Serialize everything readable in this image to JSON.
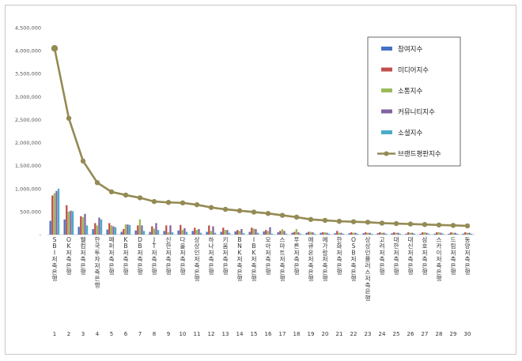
{
  "chart_data": {
    "type": "bar",
    "categories": [
      "SBI저축은행",
      "OK저축은행",
      "웰컴저축은행",
      "한국투자저축은행",
      "페퍼저축은행",
      "KB저축은행",
      "DB저축은행",
      "JT저축은행",
      "신한저축은행",
      "다올저축은행",
      "상상인저축은행",
      "하나저축은행",
      "키움저축은행",
      "BNK저축은행",
      "IBK저축은행",
      "모아저축은행",
      "스마트저축은행",
      "푸른저축은행",
      "애큐온저축은행",
      "예가람저축은행",
      "한화저축은행",
      "OSB저축은행",
      "상상인플러스저축은행",
      "고려저축은행",
      "대한저축은행",
      "대신저축은행",
      "삼호저축은행",
      "스카이저축은행",
      "드림저축은행",
      "동양저축은행"
    ],
    "ranks": [
      "1",
      "2",
      "3",
      "4",
      "5",
      "6",
      "7",
      "8",
      "9",
      "10",
      "11",
      "12",
      "13",
      "14",
      "15",
      "16",
      "17",
      "18",
      "19",
      "20",
      "21",
      "22",
      "23",
      "24",
      "25",
      "26",
      "27",
      "28",
      "29",
      "30"
    ],
    "series": [
      {
        "name": "참여지수",
        "color": "#4472c4",
        "kind": "bar",
        "values": [
          300000,
          330000,
          170000,
          120000,
          110000,
          60000,
          90000,
          60000,
          80000,
          90000,
          80000,
          60000,
          60000,
          70000,
          60000,
          70000,
          50000,
          40000,
          40000,
          40000,
          30000,
          30000,
          30000,
          30000,
          30000,
          20000,
          20000,
          20000,
          20000,
          20000
        ]
      },
      {
        "name": "미디어지수",
        "color": "#c0504d",
        "kind": "bar",
        "values": [
          850000,
          640000,
          400000,
          250000,
          250000,
          120000,
          200000,
          180000,
          200000,
          210000,
          150000,
          200000,
          150000,
          100000,
          150000,
          100000,
          80000,
          60000,
          60000,
          50000,
          80000,
          50000,
          50000,
          50000,
          50000,
          50000,
          50000,
          50000,
          50000,
          50000
        ]
      },
      {
        "name": "소통지수",
        "color": "#9bbb59",
        "kind": "bar",
        "values": [
          900000,
          500000,
          380000,
          200000,
          200000,
          220000,
          330000,
          130000,
          50000,
          100000,
          100000,
          80000,
          100000,
          80000,
          130000,
          80000,
          120000,
          120000,
          60000,
          50000,
          40000,
          40000,
          40000,
          40000,
          40000,
          40000,
          50000,
          50000,
          40000,
          40000
        ]
      },
      {
        "name": "커뮤니티지수",
        "color": "#8064a2",
        "kind": "bar",
        "values": [
          950000,
          520000,
          450000,
          370000,
          180000,
          220000,
          200000,
          250000,
          200000,
          140000,
          120000,
          180000,
          100000,
          120000,
          120000,
          160000,
          80000,
          50000,
          50000,
          40000,
          40000,
          40000,
          40000,
          40000,
          40000,
          40000,
          40000,
          40000,
          40000,
          40000
        ]
      },
      {
        "name": "소셜지수",
        "color": "#4bacc6",
        "kind": "bar",
        "values": [
          1000000,
          510000,
          200000,
          330000,
          160000,
          210000,
          80000,
          100000,
          50000,
          60000,
          40000,
          40000,
          40000,
          30000,
          40000,
          20000,
          20000,
          20000,
          20000,
          20000,
          20000,
          20000,
          20000,
          20000,
          20000,
          20000,
          20000,
          20000,
          20000,
          20000
        ]
      },
      {
        "name": "브랜드평판지수",
        "color": "#948a54",
        "kind": "line",
        "values": [
          4050000,
          2530000,
          1600000,
          1130000,
          930000,
          860000,
          800000,
          720000,
          700000,
          690000,
          650000,
          590000,
          550000,
          520000,
          490000,
          460000,
          420000,
          380000,
          330000,
          310000,
          290000,
          280000,
          270000,
          250000,
          240000,
          230000,
          220000,
          210000,
          200000,
          190000
        ]
      }
    ],
    "y_ticks": [
      "4,500,000",
      "4,000,000",
      "3,500,000",
      "3,000,000",
      "2,500,000",
      "2,000,000",
      "1,500,000",
      "1,000,000",
      "500,000",
      "-"
    ],
    "ylim": [
      0,
      4500000
    ],
    "legend_position": "top-right",
    "grid": false
  }
}
